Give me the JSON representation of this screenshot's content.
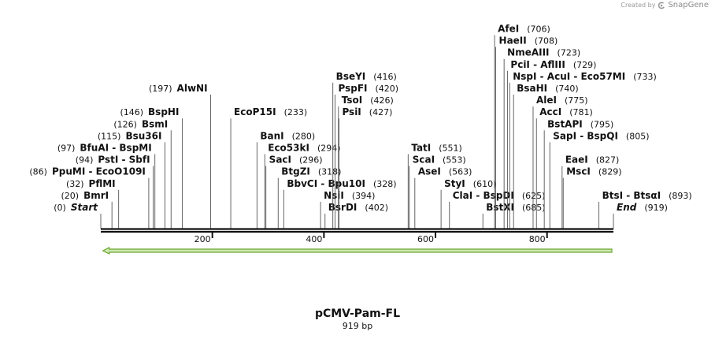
{
  "credit": {
    "created_by": "Created by",
    "brand": "SnapGene",
    "icon": "snapgene-logo-icon"
  },
  "plasmid": {
    "name": "pCMV-Pam-FL",
    "size_label": "919 bp",
    "length_bp": 919
  },
  "ticks": [
    {
      "bp": 200,
      "label": "200"
    },
    {
      "bp": 400,
      "label": "400"
    },
    {
      "bp": 600,
      "label": "600"
    },
    {
      "bp": 800,
      "label": "800"
    }
  ],
  "feature": {
    "type": "arrow",
    "direction": "left",
    "start_bp": 1,
    "end_bp": 919,
    "color": "#7dbb3c"
  },
  "colors": {
    "backbone": "#111111",
    "feature_fill": "#cde9b2",
    "feature_stroke": "#6aa52e"
  },
  "sites": [
    {
      "name": "Start",
      "pos": "(0)",
      "bp": 0,
      "row": 1,
      "side": "left",
      "terminal": true
    },
    {
      "name": "BmrI",
      "pos": "(20)",
      "bp": 20,
      "row": 2,
      "side": "left"
    },
    {
      "name": "PflMI",
      "pos": "(32)",
      "bp": 32,
      "row": 3,
      "side": "left"
    },
    {
      "name": "PpuMI - EcoO109I",
      "pos": "(86)",
      "bp": 86,
      "row": 4,
      "side": "left"
    },
    {
      "name": "PstI - SbfI",
      "pos": "(94)",
      "bp": 94,
      "row": 5,
      "side": "left"
    },
    {
      "name": "BfuAI - BspMI",
      "pos": "(97)",
      "bp": 97,
      "row": 6,
      "side": "left"
    },
    {
      "name": "Bsu36I",
      "pos": "(115)",
      "bp": 115,
      "row": 7,
      "side": "left"
    },
    {
      "name": "BsmI",
      "pos": "(126)",
      "bp": 126,
      "row": 8,
      "side": "left"
    },
    {
      "name": "BspHI",
      "pos": "(146)",
      "bp": 146,
      "row": 9,
      "side": "left"
    },
    {
      "name": "AlwNI",
      "pos": "(197)",
      "bp": 197,
      "row": 11,
      "side": "left"
    },
    {
      "name": "EcoP15I",
      "pos": "(233)",
      "bp": 233,
      "row": 9,
      "side": "right"
    },
    {
      "name": "BanI",
      "pos": "(280)",
      "bp": 280,
      "row": 7,
      "side": "right"
    },
    {
      "name": "Eco53kI",
      "pos": "(294)",
      "bp": 294,
      "row": 6,
      "side": "right"
    },
    {
      "name": "SacI",
      "pos": "(296)",
      "bp": 296,
      "row": 5,
      "side": "right"
    },
    {
      "name": "BtgZI",
      "pos": "(318)",
      "bp": 318,
      "row": 4,
      "side": "right"
    },
    {
      "name": "BbvCI - Bpu10I",
      "pos": "(328)",
      "bp": 328,
      "row": 3,
      "side": "right"
    },
    {
      "name": "NsiI",
      "pos": "(394)",
      "bp": 394,
      "row": 2,
      "side": "right"
    },
    {
      "name": "BsrDI",
      "pos": "(402)",
      "bp": 402,
      "row": 1,
      "side": "right"
    },
    {
      "name": "BseYI",
      "pos": "(416)",
      "bp": 416,
      "row": 12,
      "side": "right"
    },
    {
      "name": "PspFI",
      "pos": "(420)",
      "bp": 420,
      "row": 11,
      "side": "right"
    },
    {
      "name": "TsoI",
      "pos": "(426)",
      "bp": 426,
      "row": 10,
      "side": "right"
    },
    {
      "name": "PsiI",
      "pos": "(427)",
      "bp": 427,
      "row": 9,
      "side": "right"
    },
    {
      "name": "TatI",
      "pos": "(551)",
      "bp": 551,
      "row": 6,
      "side": "right"
    },
    {
      "name": "ScaI",
      "pos": "(553)",
      "bp": 553,
      "row": 5,
      "side": "right"
    },
    {
      "name": "AseI",
      "pos": "(563)",
      "bp": 563,
      "row": 4,
      "side": "right"
    },
    {
      "name": "StyI",
      "pos": "(610)",
      "bp": 610,
      "row": 3,
      "side": "right"
    },
    {
      "name": "ClaI - BspDI",
      "pos": "(625)",
      "bp": 625,
      "row": 2,
      "side": "right"
    },
    {
      "name": "BstXI",
      "pos": "(685)",
      "bp": 685,
      "row": 1,
      "side": "right"
    },
    {
      "name": "AfeI",
      "pos": "(706)",
      "bp": 706,
      "row": 16,
      "side": "right"
    },
    {
      "name": "HaeII",
      "pos": "(708)",
      "bp": 708,
      "row": 15,
      "side": "right"
    },
    {
      "name": "NmeAIII",
      "pos": "(723)",
      "bp": 723,
      "row": 14,
      "side": "right"
    },
    {
      "name": "PciI - AflIII",
      "pos": "(729)",
      "bp": 729,
      "row": 13,
      "side": "right"
    },
    {
      "name": "NspI - AcuI - Eco57MI",
      "pos": "(733)",
      "bp": 733,
      "row": 12,
      "side": "right"
    },
    {
      "name": "BsaHI",
      "pos": "(740)",
      "bp": 740,
      "row": 11,
      "side": "right"
    },
    {
      "name": "AleI",
      "pos": "(775)",
      "bp": 775,
      "row": 10,
      "side": "right"
    },
    {
      "name": "AccI",
      "pos": "(781)",
      "bp": 781,
      "row": 9,
      "side": "right"
    },
    {
      "name": "BstAPI",
      "pos": "(795)",
      "bp": 795,
      "row": 8,
      "side": "right"
    },
    {
      "name": "SapI - BspQI",
      "pos": "(805)",
      "bp": 805,
      "row": 7,
      "side": "right"
    },
    {
      "name": "EaeI",
      "pos": "(827)",
      "bp": 827,
      "row": 5,
      "side": "right"
    },
    {
      "name": "MscI",
      "pos": "(829)",
      "bp": 829,
      "row": 4,
      "side": "right"
    },
    {
      "name": "BtsI - BtsαI",
      "pos": "(893)",
      "bp": 893,
      "row": 2,
      "side": "right"
    },
    {
      "name": "End",
      "pos": "(919)",
      "bp": 919,
      "row": 1,
      "side": "right",
      "terminal": true
    }
  ]
}
